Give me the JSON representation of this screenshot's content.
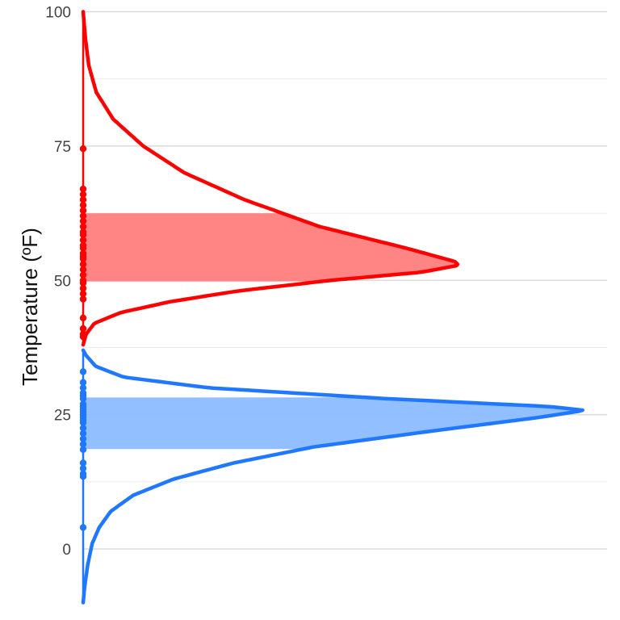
{
  "chart_data": {
    "type": "density",
    "orientation": "horizontal",
    "title": "",
    "xlabel": "",
    "ylabel": "Temperature (ºF)",
    "ylim": [
      -10,
      100
    ],
    "y_ticks": [
      0,
      25,
      50,
      75,
      100
    ],
    "grid": true,
    "legend": "none",
    "series": [
      {
        "color": "#ff0000",
        "band_color": "#ff7e7e",
        "mode": 52.8,
        "iqr": [
          49.8,
          62.5
        ],
        "points": [
          74.5,
          67,
          66,
          65,
          64,
          63,
          62,
          61,
          60,
          59,
          58.5,
          57.5,
          56.5,
          56,
          55,
          54.5,
          54,
          53,
          52,
          51,
          50,
          49.5,
          48.5,
          47.5,
          46.5,
          43,
          41,
          40,
          39.5
        ],
        "density_profile": [
          {
            "y": 100,
            "d": 0.0
          },
          {
            "y": 95,
            "d": 0.006
          },
          {
            "y": 90,
            "d": 0.015
          },
          {
            "y": 85,
            "d": 0.035
          },
          {
            "y": 80,
            "d": 0.08
          },
          {
            "y": 75,
            "d": 0.16
          },
          {
            "y": 70,
            "d": 0.27
          },
          {
            "y": 65,
            "d": 0.43
          },
          {
            "y": 60,
            "d": 0.63
          },
          {
            "y": 56,
            "d": 0.86
          },
          {
            "y": 53.5,
            "d": 0.99
          },
          {
            "y": 52.8,
            "d": 1.0
          },
          {
            "y": 51.5,
            "d": 0.9
          },
          {
            "y": 50,
            "d": 0.66
          },
          {
            "y": 48,
            "d": 0.41
          },
          {
            "y": 46,
            "d": 0.23
          },
          {
            "y": 44,
            "d": 0.1
          },
          {
            "y": 42,
            "d": 0.03
          },
          {
            "y": 40,
            "d": 0.008
          },
          {
            "y": 38,
            "d": 0.0
          }
        ]
      },
      {
        "color": "#1f78ff",
        "band_color": "#8bbcff",
        "mode": 25.8,
        "iqr": [
          18.6,
          28.2
        ],
        "points": [
          33,
          31,
          30,
          29,
          28.5,
          28,
          27,
          26.5,
          26,
          25.5,
          25,
          24.5,
          24,
          23.5,
          22.5,
          21.5,
          20.5,
          19.5,
          18.5,
          16,
          15,
          14,
          13.5,
          4
        ],
        "density_profile": [
          {
            "y": 37,
            "d": 0.0
          },
          {
            "y": 36,
            "d": 0.006
          },
          {
            "y": 34,
            "d": 0.025
          },
          {
            "y": 32,
            "d": 0.08
          },
          {
            "y": 30,
            "d": 0.25
          },
          {
            "y": 28,
            "d": 0.6
          },
          {
            "y": 26.5,
            "d": 0.93
          },
          {
            "y": 25.8,
            "d": 1.0
          },
          {
            "y": 24.5,
            "d": 0.91
          },
          {
            "y": 22,
            "d": 0.7
          },
          {
            "y": 19,
            "d": 0.46
          },
          {
            "y": 16,
            "d": 0.3
          },
          {
            "y": 13,
            "d": 0.18
          },
          {
            "y": 10,
            "d": 0.1
          },
          {
            "y": 7,
            "d": 0.055
          },
          {
            "y": 4,
            "d": 0.032
          },
          {
            "y": 1,
            "d": 0.018
          },
          {
            "y": -3,
            "d": 0.009
          },
          {
            "y": -7,
            "d": 0.003
          },
          {
            "y": -10,
            "d": 0.0
          }
        ]
      }
    ]
  }
}
